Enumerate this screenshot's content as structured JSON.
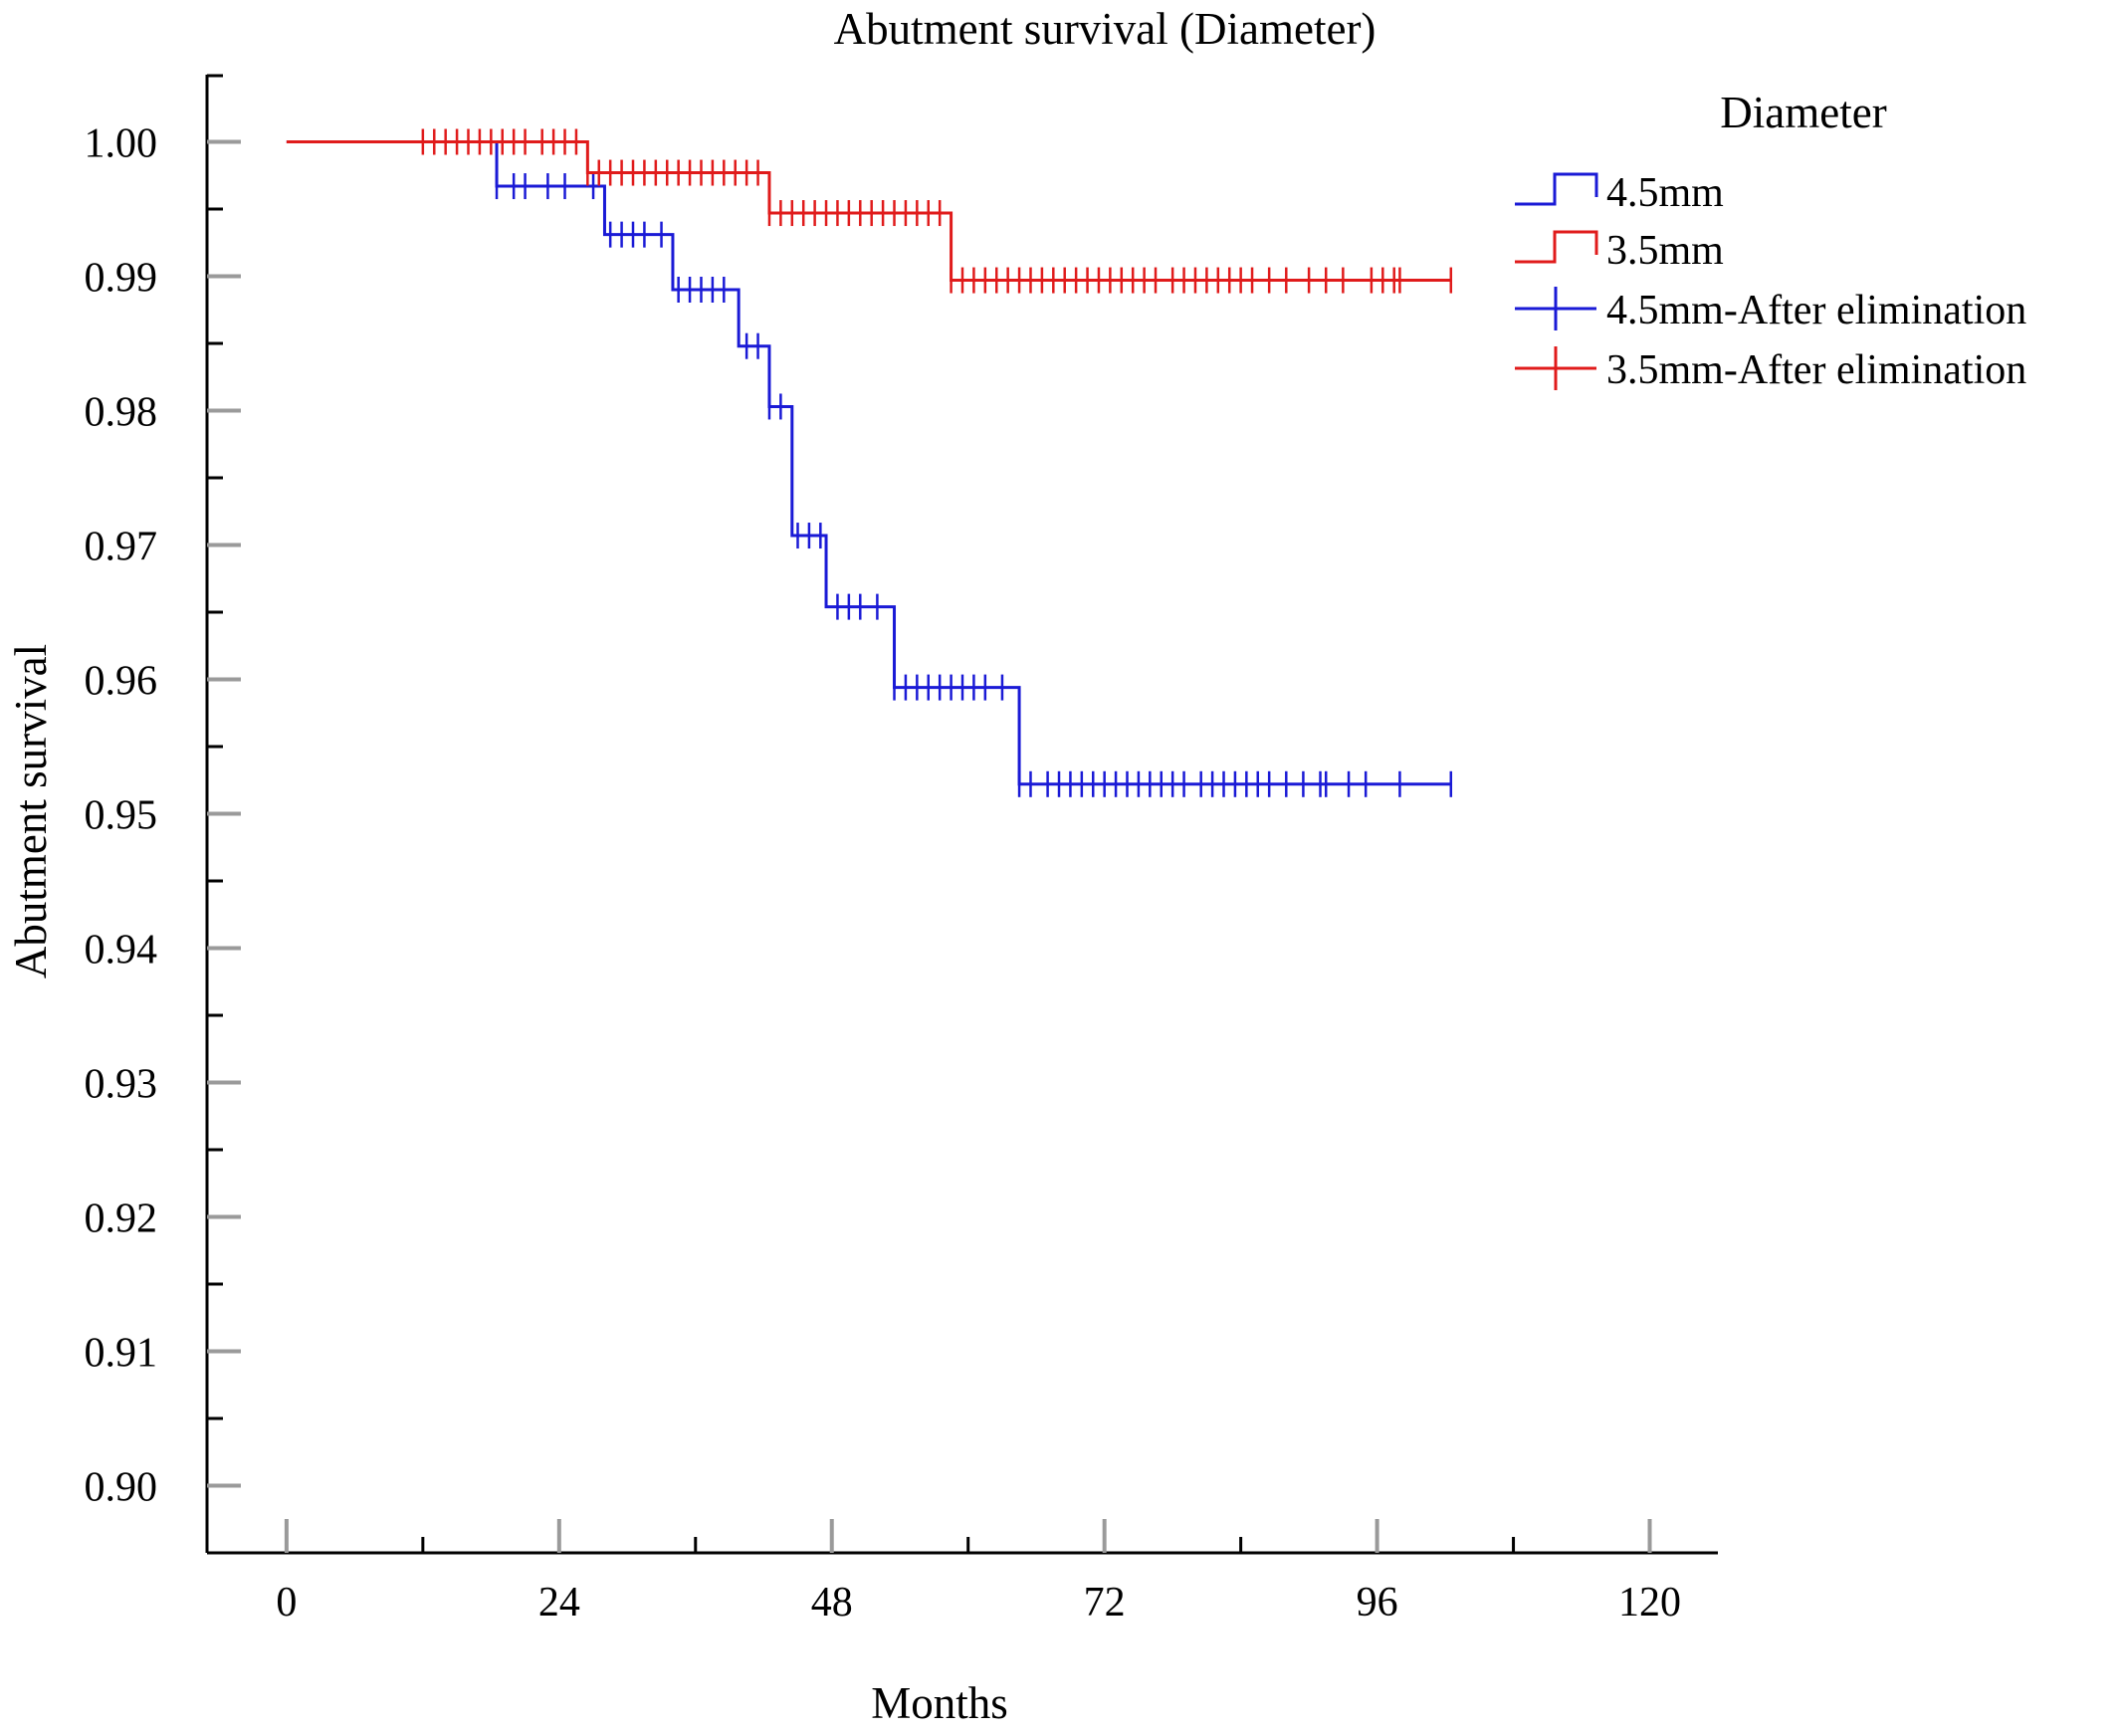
{
  "chart_data": {
    "type": "line",
    "step": true,
    "title": "Abutment survival (Diameter)",
    "xlabel": "Months",
    "ylabel": "Abutment survival",
    "xlim": [
      -7,
      126
    ],
    "ylim": [
      0.895,
      1.005
    ],
    "x_ticks": [
      0,
      24,
      48,
      72,
      96,
      120
    ],
    "x_tick_labels": [
      "0",
      "24",
      "48",
      "72",
      "96",
      "120"
    ],
    "y_ticks": [
      0.9,
      0.91,
      0.92,
      0.93,
      0.94,
      0.95,
      0.96,
      0.97,
      0.98,
      0.99,
      1.0
    ],
    "y_tick_labels": [
      "0.90",
      "0.91",
      "0.92",
      "0.93",
      "0.94",
      "0.95",
      "0.96",
      "0.97",
      "0.98",
      "0.99",
      "1.00"
    ],
    "legend": {
      "title": "Diameter",
      "position": "top-right",
      "entries": [
        {
          "label": "4.5mm",
          "symbol": "step",
          "color": "#1a1ad6"
        },
        {
          "label": "3.5mm",
          "symbol": "step",
          "color": "#e01b1b"
        },
        {
          "label": "4.5mm-After elimination",
          "symbol": "cross",
          "color": "#1a1ad6"
        },
        {
          "label": "3.5mm-After elimination",
          "symbol": "cross",
          "color": "#e01b1b"
        }
      ]
    },
    "series": [
      {
        "name": "4.5mm",
        "color": "#1a1ad6",
        "steps": [
          [
            0,
            1.0
          ],
          [
            18.5,
            0.9967
          ],
          [
            28,
            0.9931
          ],
          [
            34,
            0.989
          ],
          [
            39.8,
            0.9848
          ],
          [
            42.5,
            0.9803
          ],
          [
            44.5,
            0.9707
          ],
          [
            47.5,
            0.9654
          ],
          [
            53.5,
            0.9594
          ],
          [
            64.5,
            0.9522
          ]
        ],
        "end_x": 102.5,
        "censored": [
          18.5,
          20,
          21,
          23,
          24.5,
          27,
          28.5,
          29.5,
          30.5,
          31.5,
          33,
          34.5,
          35.5,
          36.5,
          37.5,
          38.5,
          40.5,
          41.5,
          42.5,
          43.5,
          45,
          46,
          47,
          48.5,
          49.5,
          50.5,
          52,
          53.5,
          54.5,
          55.5,
          56.5,
          57.5,
          58.5,
          59.5,
          60.5,
          61.5,
          63,
          64.5,
          65.5,
          67,
          68,
          69,
          70,
          71,
          72,
          73,
          74,
          75,
          76,
          77,
          78,
          79,
          80.5,
          81.5,
          82.5,
          83.5,
          84.5,
          85.5,
          86.5,
          88,
          89.5,
          91,
          91.5,
          93.5,
          95,
          98,
          102.5
        ]
      },
      {
        "name": "3.5mm",
        "color": "#e01b1b",
        "steps": [
          [
            0,
            1.0
          ],
          [
            26.5,
            0.9977
          ],
          [
            42.5,
            0.9947
          ],
          [
            58.5,
            0.9897
          ]
        ],
        "end_x": 102.5,
        "censored": [
          12,
          13,
          14,
          15,
          16,
          17,
          18,
          19,
          20,
          21,
          22.5,
          23.5,
          24.5,
          25.5,
          26.5,
          27.5,
          28.5,
          29.5,
          30.5,
          31.5,
          32.5,
          33.5,
          34.5,
          35.5,
          36.5,
          37.5,
          38.5,
          39.5,
          40.5,
          41.5,
          42.5,
          43.5,
          44.5,
          45.5,
          46.5,
          47.5,
          48.5,
          49.5,
          50.5,
          51.5,
          52.5,
          53.5,
          54.5,
          55.5,
          56.5,
          57.5,
          58.5,
          59.5,
          60.5,
          61.5,
          62.5,
          63.5,
          64.5,
          65.5,
          66.5,
          67.5,
          68.5,
          69.5,
          70.5,
          71.5,
          72.5,
          73.5,
          74.5,
          75.5,
          76.5,
          78,
          79,
          80,
          81,
          82,
          83,
          84,
          85,
          86.5,
          88,
          90,
          91.5,
          93,
          95.5,
          96.5,
          97.5,
          98,
          102.5
        ]
      }
    ]
  }
}
